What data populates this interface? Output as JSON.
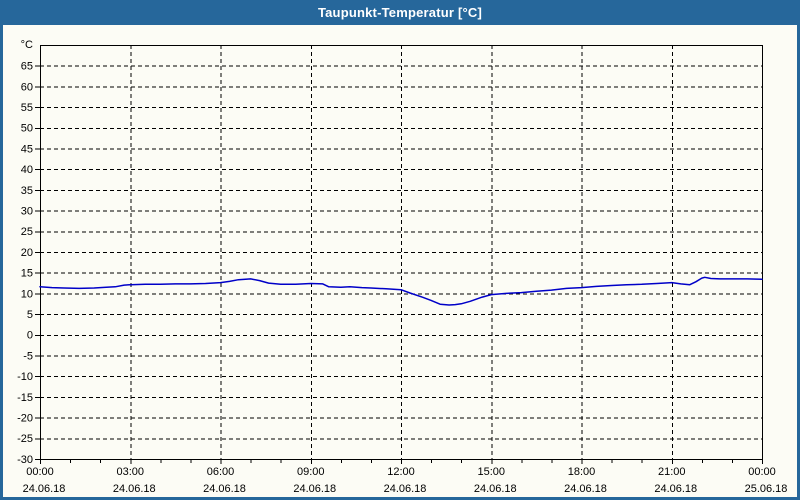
{
  "window": {
    "title": "Taupunkt-Temperatur [°C]",
    "title_bar_color": "#26679B",
    "border_color": "#26679B",
    "background_color": "#FCFCF5"
  },
  "chart_data": {
    "type": "line",
    "title": "Taupunkt-Temperatur [°C]",
    "ylabel": "°C",
    "xlabel": "",
    "ylim": [
      -30,
      70
    ],
    "xlim_hours": [
      0,
      24
    ],
    "grid": "dashed-black",
    "legend": "none",
    "y_ticks": [
      65,
      60,
      55,
      50,
      45,
      40,
      35,
      30,
      25,
      20,
      15,
      10,
      5,
      0,
      -5,
      -10,
      -15,
      -20,
      -25,
      -30
    ],
    "x_minor_tick_hours": [
      0,
      1,
      2,
      3,
      4,
      5,
      6,
      7,
      8,
      9,
      10,
      11,
      12,
      13,
      14,
      15,
      16,
      17,
      18,
      19,
      20,
      21,
      22,
      23,
      24
    ],
    "x_ticks": [
      {
        "hour": 0,
        "time": "00:00",
        "date": "24.06.18"
      },
      {
        "hour": 3,
        "time": "03:00",
        "date": "24.06.18"
      },
      {
        "hour": 6,
        "time": "06:00",
        "date": "24.06.18"
      },
      {
        "hour": 9,
        "time": "09:00",
        "date": "24.06.18"
      },
      {
        "hour": 12,
        "time": "12:00",
        "date": "24.06.18"
      },
      {
        "hour": 15,
        "time": "15:00",
        "date": "24.06.18"
      },
      {
        "hour": 18,
        "time": "18:00",
        "date": "24.06.18"
      },
      {
        "hour": 21,
        "time": "21:00",
        "date": "24.06.18"
      },
      {
        "hour": 24,
        "time": "00:00",
        "date": "25.06.18"
      }
    ],
    "series": [
      {
        "name": "Taupunkt-Temperatur",
        "color": "#0000C8",
        "points_hours_degC": [
          [
            0.0,
            11.6
          ],
          [
            0.4,
            11.4
          ],
          [
            0.8,
            11.3
          ],
          [
            1.3,
            11.2
          ],
          [
            1.8,
            11.3
          ],
          [
            2.2,
            11.5
          ],
          [
            2.5,
            11.6
          ],
          [
            2.8,
            12.0
          ],
          [
            3.0,
            12.1
          ],
          [
            3.5,
            12.2
          ],
          [
            4.0,
            12.2
          ],
          [
            4.5,
            12.3
          ],
          [
            5.0,
            12.3
          ],
          [
            5.5,
            12.4
          ],
          [
            6.0,
            12.6
          ],
          [
            6.3,
            12.9
          ],
          [
            6.6,
            13.3
          ],
          [
            7.0,
            13.5
          ],
          [
            7.3,
            13.1
          ],
          [
            7.6,
            12.5
          ],
          [
            8.0,
            12.2
          ],
          [
            8.5,
            12.2
          ],
          [
            9.0,
            12.4
          ],
          [
            9.4,
            12.3
          ],
          [
            9.6,
            11.6
          ],
          [
            10.0,
            11.5
          ],
          [
            10.3,
            11.6
          ],
          [
            10.7,
            11.4
          ],
          [
            11.0,
            11.3
          ],
          [
            11.5,
            11.1
          ],
          [
            12.0,
            10.9
          ],
          [
            12.3,
            10.1
          ],
          [
            12.7,
            9.1
          ],
          [
            13.0,
            8.3
          ],
          [
            13.3,
            7.4
          ],
          [
            13.6,
            7.2
          ],
          [
            13.8,
            7.3
          ],
          [
            14.0,
            7.5
          ],
          [
            14.3,
            8.1
          ],
          [
            14.7,
            9.1
          ],
          [
            15.0,
            9.7
          ],
          [
            15.5,
            10.0
          ],
          [
            16.0,
            10.2
          ],
          [
            16.5,
            10.5
          ],
          [
            17.0,
            10.8
          ],
          [
            17.5,
            11.2
          ],
          [
            18.0,
            11.4
          ],
          [
            18.5,
            11.7
          ],
          [
            19.0,
            11.9
          ],
          [
            19.5,
            12.1
          ],
          [
            20.0,
            12.2
          ],
          [
            20.5,
            12.4
          ],
          [
            21.0,
            12.6
          ],
          [
            21.3,
            12.3
          ],
          [
            21.6,
            12.1
          ],
          [
            21.8,
            12.8
          ],
          [
            22.0,
            13.7
          ],
          [
            22.1,
            13.9
          ],
          [
            22.3,
            13.6
          ],
          [
            22.6,
            13.5
          ],
          [
            23.0,
            13.5
          ],
          [
            23.5,
            13.5
          ],
          [
            24.0,
            13.4
          ]
        ]
      }
    ]
  }
}
